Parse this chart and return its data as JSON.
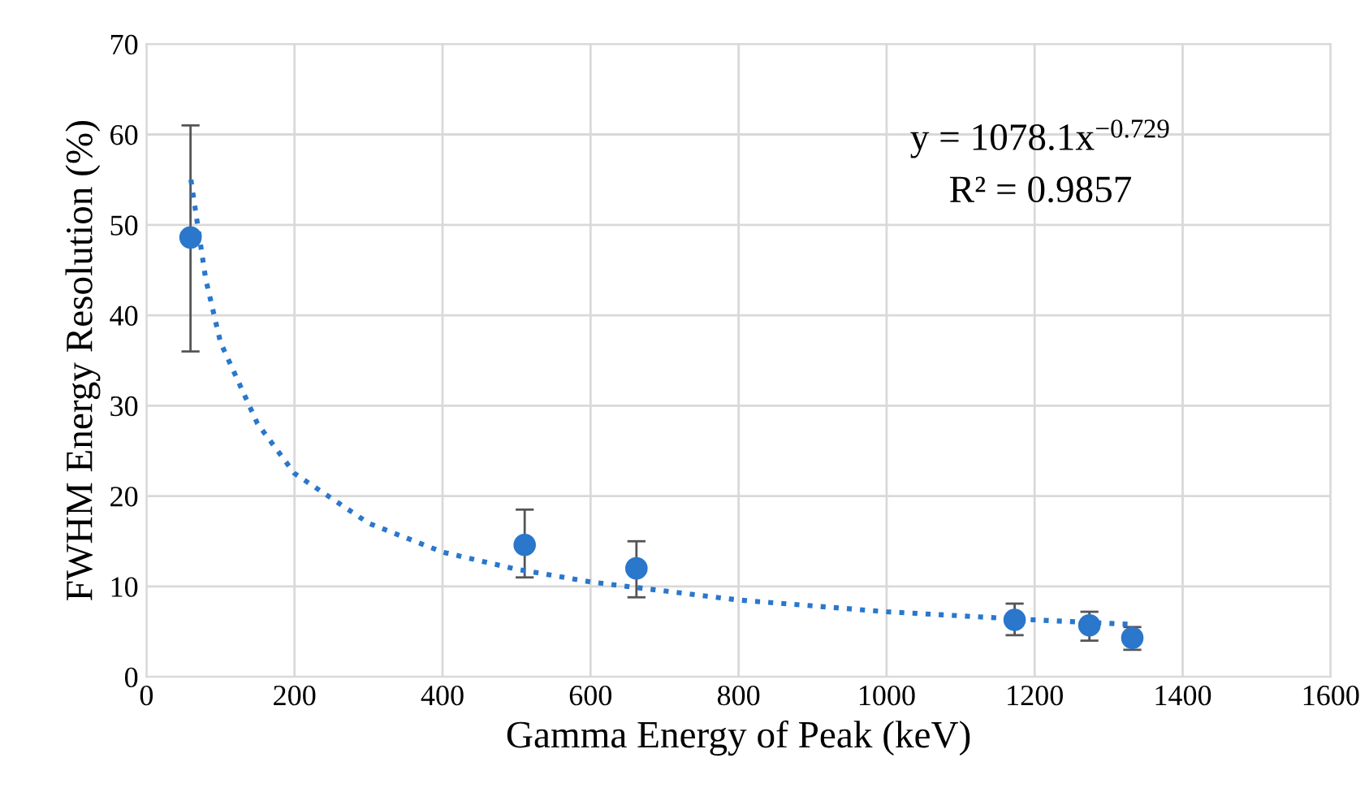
{
  "chart_data": {
    "type": "scatter",
    "xlabel": "Gamma Energy of Peak (keV)",
    "ylabel": "FWHM Energy Resolution (%)",
    "annotations": [
      "y = 1078.1x$^{−0.729}$",
      "R² = 0.9857"
    ],
    "series": [
      {
        "color": "#2a77cc",
        "marker": "circle",
        "x": [
          59.5,
          511,
          662,
          1173,
          1274,
          1332
        ],
        "values": [
          48.6,
          14.6,
          12.0,
          6.3,
          5.7,
          4.3
        ],
        "errors": [
          [
            36,
            61
          ],
          [
            11,
            18.5
          ],
          [
            8.8,
            15
          ],
          [
            4.6,
            8.1
          ],
          [
            4,
            7.2
          ],
          [
            3,
            5.5
          ]
        ]
      },
      {
        "type": "line",
        "color": "#2a77cc",
        "line_style": "dotted",
        "marker": "none",
        "x": [
          60,
          80,
          100,
          150,
          200,
          300,
          400,
          500,
          600,
          800,
          1000,
          1200,
          1332
        ],
        "values": [
          55,
          44,
          37,
          28,
          22.5,
          17,
          13.8,
          11.9,
          10.5,
          8.5,
          7.2,
          6.3,
          5.8
        ]
      }
    ],
    "xlim": [
      0,
      1600
    ],
    "xticks": [
      0,
      200,
      400,
      600,
      800,
      1000,
      1200,
      1400,
      1600
    ],
    "ylim": [
      0,
      70
    ],
    "yticks": [
      0,
      10,
      20,
      30,
      40,
      50,
      60,
      70
    ],
    "grid": true,
    "legend": false
  }
}
